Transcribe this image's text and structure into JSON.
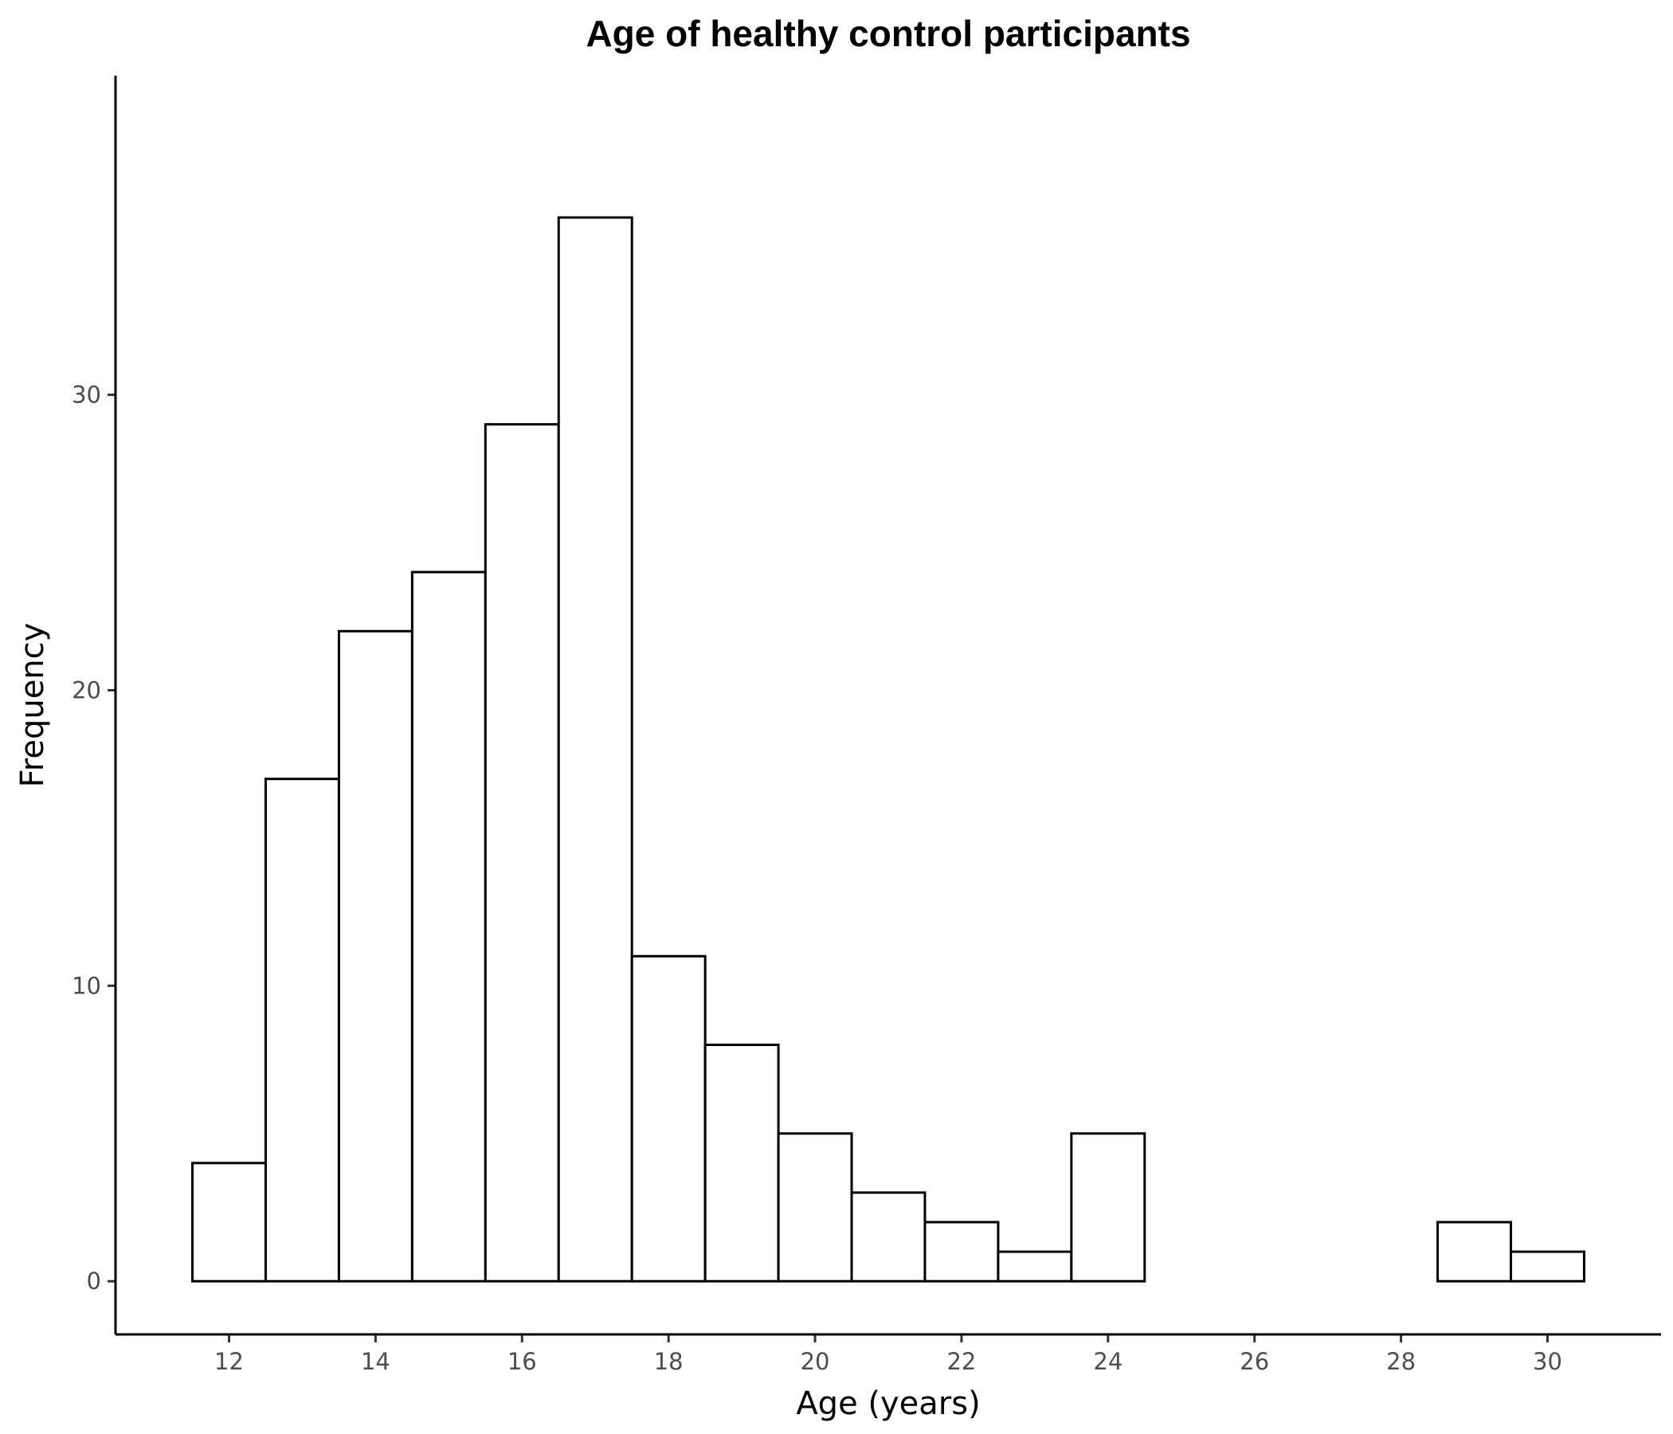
{
  "chart_data": {
    "type": "bar",
    "title": "Age of healthy control participants",
    "xlabel": "Age (years)",
    "ylabel": "Frequency",
    "bin_width": 1,
    "x": [
      12,
      13,
      14,
      15,
      16,
      17,
      18,
      19,
      20,
      21,
      22,
      23,
      24,
      25,
      26,
      27,
      28,
      29,
      30
    ],
    "values": [
      4,
      17,
      22,
      24,
      29,
      36,
      11,
      8,
      5,
      3,
      2,
      1,
      5,
      0,
      0,
      0,
      0,
      2,
      1
    ],
    "xlim": [
      10.45,
      31.55
    ],
    "ylim": [
      -1.8,
      40.8
    ],
    "xticks": [
      12,
      14,
      16,
      18,
      20,
      22,
      24,
      26,
      28,
      30
    ],
    "yticks": [
      0,
      10,
      20,
      30
    ],
    "grid": false,
    "legend": "none",
    "colors": {
      "fill": "#ffffff",
      "stroke": "#000000",
      "tick_text": "#4d4d4d"
    }
  }
}
